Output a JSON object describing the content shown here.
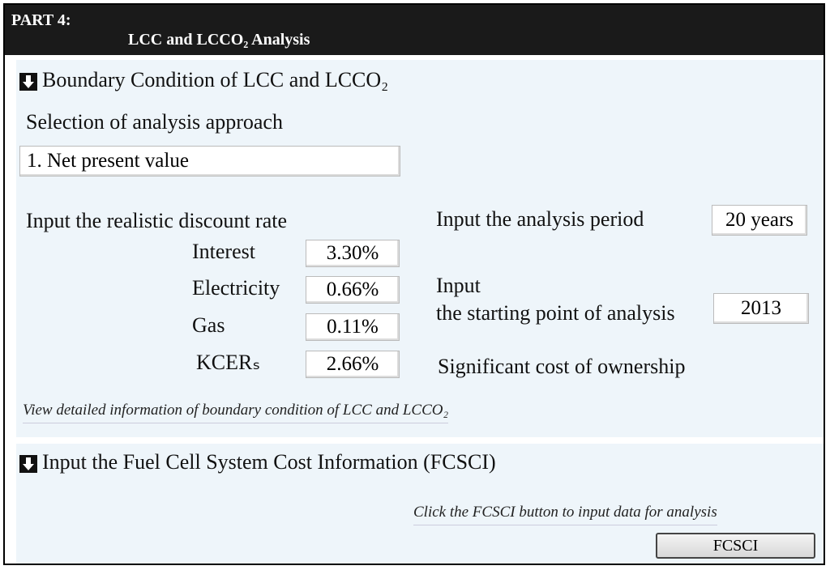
{
  "header": {
    "part": "PART 4:",
    "title": "LCC and LCCO₂ Analysis"
  },
  "boundary": {
    "title": "Boundary Condition of LCC and LCCO₂",
    "approach_label": "Selection of analysis approach",
    "approach_value": "1. Net present value",
    "discount_label": "Input the realistic discount rate",
    "rates": [
      {
        "label": "Interest",
        "value": "3.30%"
      },
      {
        "label": "Electricity",
        "value": "0.66%"
      },
      {
        "label": "Gas",
        "value": "0.11%"
      },
      {
        "label": "KCERₛ",
        "value": "2.66%"
      }
    ],
    "period_label": "Input the analysis period",
    "period_value": "20 years",
    "start_label": [
      "Input",
      "the starting point of analysis"
    ],
    "start_value": "2013",
    "ownership_label": "Significant cost of ownership",
    "link": "View detailed information of boundary condition of LCC and LCCO₂"
  },
  "fcsci": {
    "title": "Input the Fuel Cell System Cost Information (FCSCI)",
    "instruction": "Click the FCSCI button to input data for analysis",
    "button": "FCSCI"
  }
}
